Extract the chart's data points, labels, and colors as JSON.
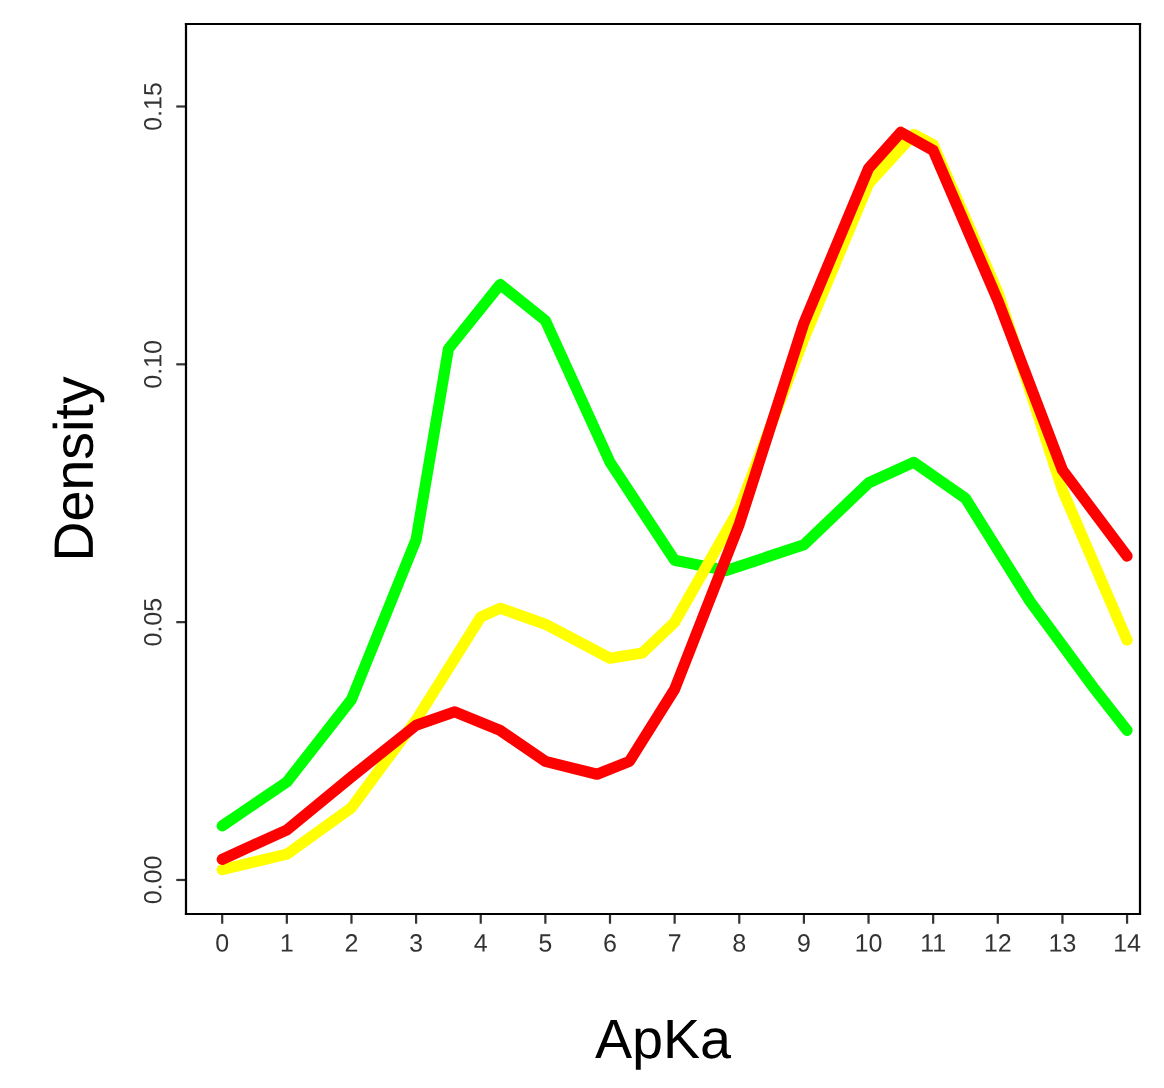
{
  "chart_data": {
    "type": "line",
    "xlabel": "ApKa",
    "ylabel": "Density",
    "xlim": [
      -0.56,
      14.2
    ],
    "ylim": [
      -0.0066,
      0.166
    ],
    "xticks": [
      0,
      1,
      2,
      3,
      4,
      5,
      6,
      7,
      8,
      9,
      10,
      11,
      12,
      13,
      14
    ],
    "yticks": [
      {
        "value": 0,
        "label": "0.00"
      },
      {
        "value": 0.05,
        "label": "0.05"
      },
      {
        "value": 0.1,
        "label": "0.10"
      },
      {
        "value": 0.15,
        "label": "0.15"
      }
    ],
    "grid": false,
    "marker": "none",
    "line_style": "solid",
    "series": [
      {
        "color": "#00ff00",
        "x": [
          0,
          1,
          2,
          3,
          3.5,
          4.3,
          5,
          6,
          7,
          7.8,
          9,
          10,
          10.7,
          11.5,
          12.5,
          13.5,
          14
        ],
        "values": [
          0.0105,
          0.019,
          0.035,
          0.066,
          0.103,
          0.1155,
          0.1085,
          0.081,
          0.062,
          0.06,
          0.065,
          0.077,
          0.081,
          0.074,
          0.054,
          0.037,
          0.029
        ]
      },
      {
        "color": "#ffff00",
        "x": [
          0,
          1,
          2,
          3,
          4,
          4.3,
          5,
          6,
          6.5,
          7,
          8,
          9,
          10,
          10.7,
          11,
          12,
          13,
          14
        ],
        "values": [
          0.002,
          0.005,
          0.014,
          0.031,
          0.051,
          0.0527,
          0.0496,
          0.043,
          0.044,
          0.05,
          0.072,
          0.105,
          0.135,
          0.1446,
          0.1426,
          0.114,
          0.0756,
          0.0465
        ]
      },
      {
        "color": "#ff0000",
        "x": [
          0,
          1,
          2,
          3,
          3.6,
          4.3,
          5,
          5.8,
          6.3,
          7,
          8,
          9,
          10,
          10.5,
          11,
          12,
          13,
          14
        ],
        "values": [
          0.004,
          0.0097,
          0.02,
          0.03,
          0.0326,
          0.029,
          0.023,
          0.0205,
          0.023,
          0.037,
          0.069,
          0.108,
          0.138,
          0.145,
          0.1415,
          0.1124,
          0.0795,
          0.0628
        ]
      }
    ]
  }
}
